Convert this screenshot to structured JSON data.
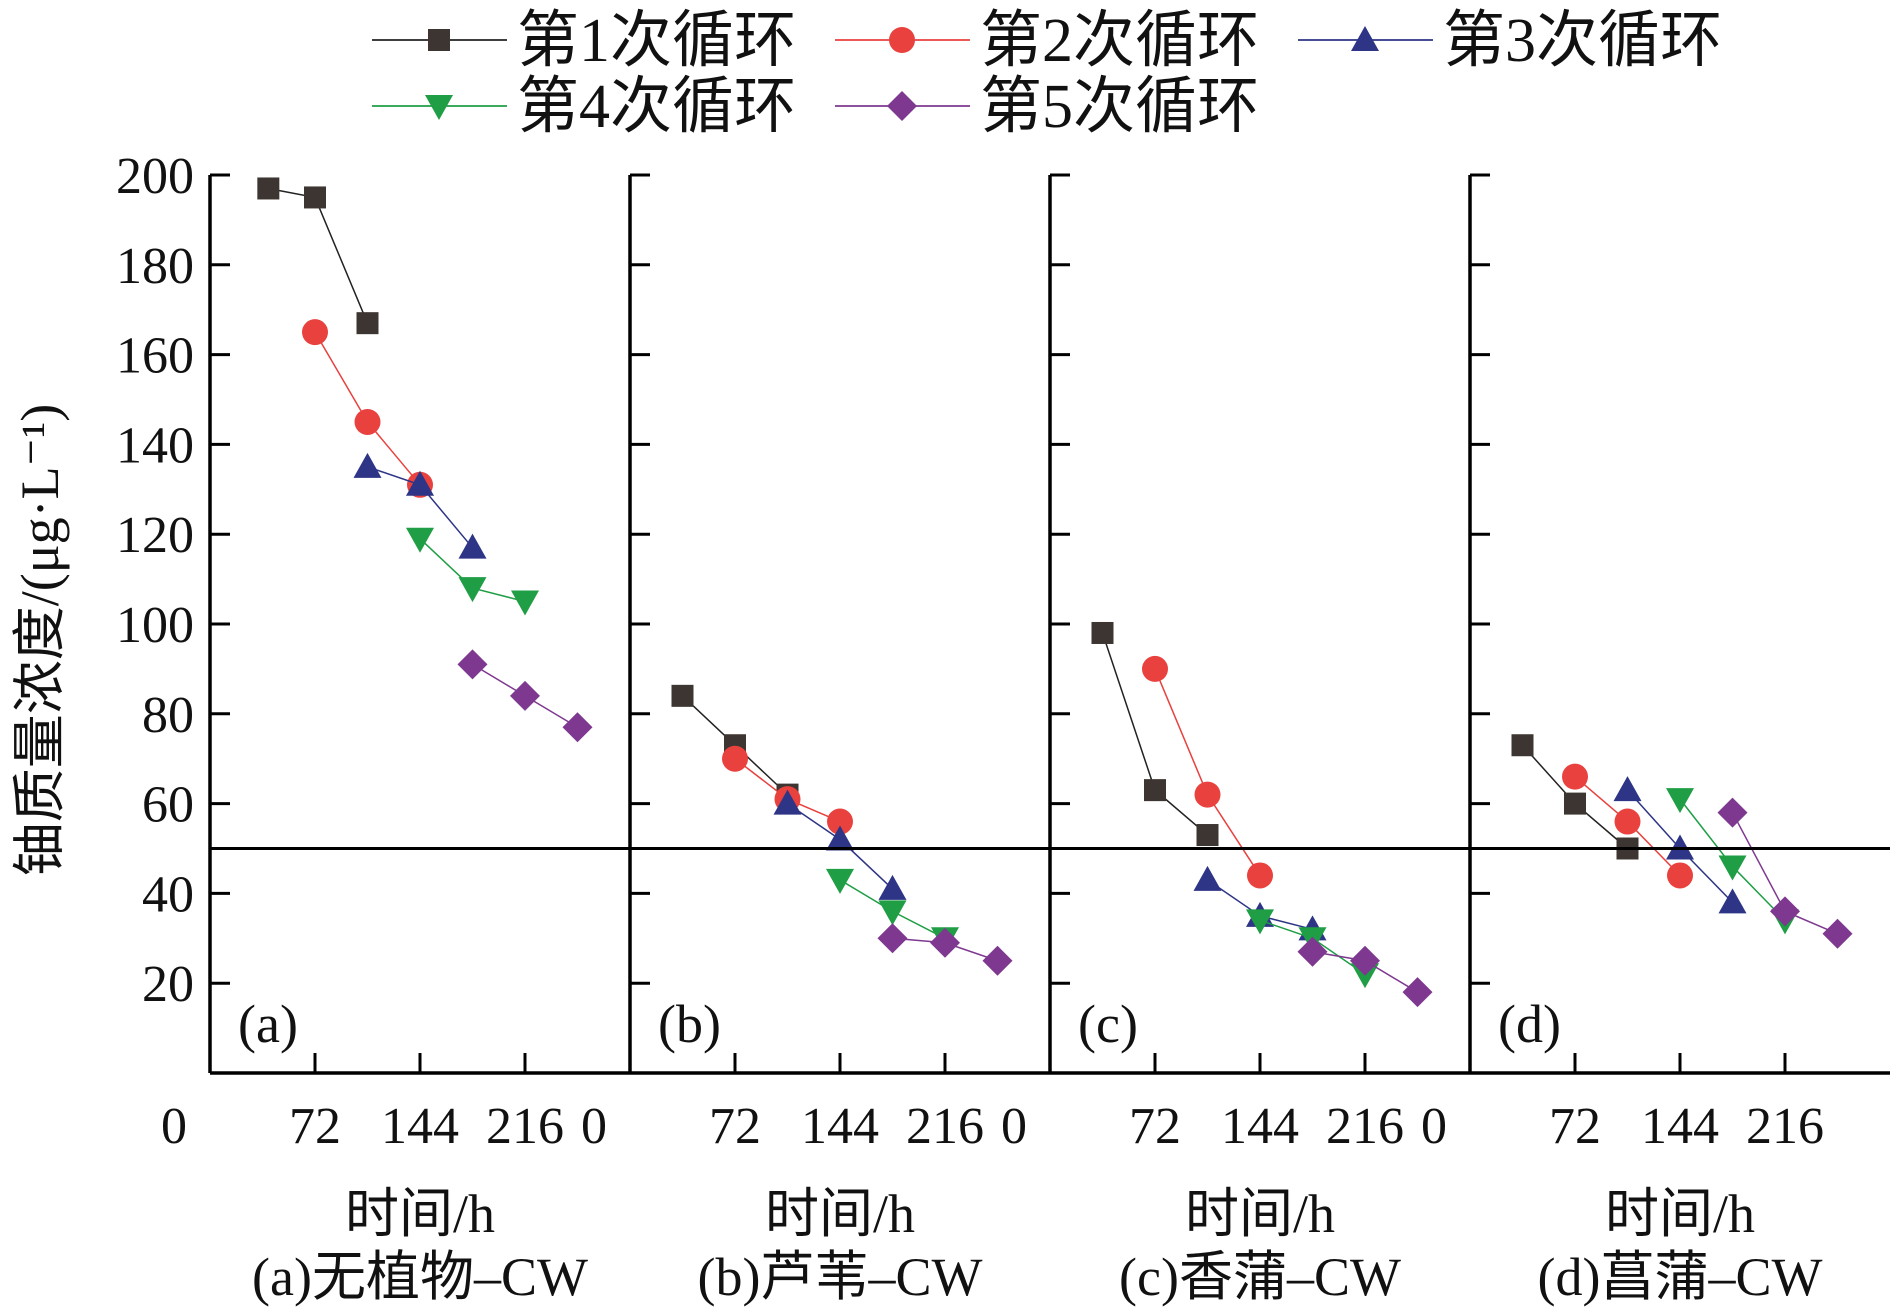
{
  "chart_data": {
    "type": "scatter",
    "ylabel": "铀质量浓度/(μg·L⁻¹)",
    "ylim": [
      0,
      200
    ],
    "yticks": [
      20,
      40,
      60,
      80,
      100,
      120,
      140,
      160,
      180,
      200
    ],
    "xlim": [
      0,
      288
    ],
    "xticks": [
      0,
      72,
      144,
      216
    ],
    "xlabel": "时间/h",
    "reference_line": 50,
    "legend": [
      {
        "name": "第1次循环",
        "marker": "square",
        "color": "#3d3531",
        "line": "#222222"
      },
      {
        "name": "第2次循环",
        "marker": "circle",
        "color": "#e8413e",
        "line": "#e8413e"
      },
      {
        "name": "第3次循环",
        "marker": "triangle-up",
        "color": "#2e3586",
        "line": "#2e3586"
      },
      {
        "name": "第4次循环",
        "marker": "triangle-down",
        "color": "#1f9e45",
        "line": "#1f9e45"
      },
      {
        "name": "第5次循环",
        "marker": "diamond",
        "color": "#7e3890",
        "line": "#7e3890"
      }
    ],
    "panels": [
      {
        "letter": "(a)",
        "caption": "(a)无植物–CW",
        "series": [
          {
            "x": [
              40,
              72,
              108
            ],
            "y": [
              197,
              195,
              167
            ]
          },
          {
            "x": [
              72,
              108,
              144
            ],
            "y": [
              165,
              145,
              131
            ]
          },
          {
            "x": [
              108,
              144,
              180
            ],
            "y": [
              135,
              131,
              117
            ]
          },
          {
            "x": [
              144,
              180,
              216
            ],
            "y": [
              119,
              108,
              105
            ]
          },
          {
            "x": [
              180,
              216,
              252
            ],
            "y": [
              91,
              84,
              77
            ]
          }
        ]
      },
      {
        "letter": "(b)",
        "caption": "(b)芦苇–CW",
        "series": [
          {
            "x": [
              36,
              72,
              108
            ],
            "y": [
              84,
              73,
              62
            ]
          },
          {
            "x": [
              72,
              108,
              144
            ],
            "y": [
              70,
              61,
              56
            ]
          },
          {
            "x": [
              108,
              144,
              180
            ],
            "y": [
              60,
              52,
              41
            ]
          },
          {
            "x": [
              144,
              180,
              216
            ],
            "y": [
              43,
              36,
              30
            ]
          },
          {
            "x": [
              180,
              216,
              252
            ],
            "y": [
              30,
              29,
              25
            ]
          }
        ]
      },
      {
        "letter": "(c)",
        "caption": "(c)香蒲–CW",
        "series": [
          {
            "x": [
              36,
              72,
              108
            ],
            "y": [
              98,
              63,
              53
            ]
          },
          {
            "x": [
              72,
              108,
              144
            ],
            "y": [
              90,
              62,
              44
            ]
          },
          {
            "x": [
              108,
              144,
              180
            ],
            "y": [
              43,
              35,
              32
            ]
          },
          {
            "x": [
              144,
              180,
              216
            ],
            "y": [
              34,
              30,
              22
            ]
          },
          {
            "x": [
              180,
              216,
              252
            ],
            "y": [
              27,
              25,
              18
            ]
          }
        ]
      },
      {
        "letter": "(d)",
        "caption": "(d)菖蒲–CW",
        "series": [
          {
            "x": [
              36,
              72,
              108
            ],
            "y": [
              73,
              60,
              50
            ]
          },
          {
            "x": [
              72,
              108,
              144
            ],
            "y": [
              66,
              56,
              44
            ]
          },
          {
            "x": [
              108,
              144,
              180
            ],
            "y": [
              63,
              50,
              38
            ]
          },
          {
            "x": [
              144,
              180,
              216
            ],
            "y": [
              61,
              46,
              34
            ]
          },
          {
            "x": [
              180,
              216,
              252
            ],
            "y": [
              58,
              36,
              31
            ]
          }
        ]
      }
    ]
  }
}
